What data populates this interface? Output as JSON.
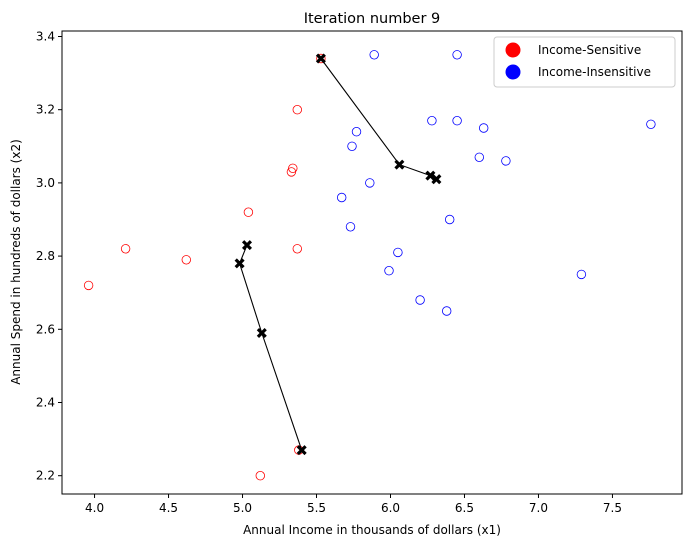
{
  "chart_data": {
    "type": "scatter",
    "title": "Iteration number 9",
    "xlabel": "Annual Income in thousands of dollars (x1)",
    "ylabel": "Annual Spend in hundreds of dollars (x2)",
    "xlim": [
      3.78,
      7.97
    ],
    "ylim": [
      2.15,
      3.415
    ],
    "xticks": [
      "4.0",
      "4.5",
      "5.0",
      "5.5",
      "6.0",
      "6.5",
      "7.0",
      "7.5"
    ],
    "yticks": [
      "2.2",
      "2.4",
      "2.6",
      "2.8",
      "3.0",
      "3.2",
      "3.4"
    ],
    "grid": false,
    "legend": {
      "position": "top-right",
      "entries": [
        {
          "label": "Income-Sensitive",
          "color": "#ff0000"
        },
        {
          "label": "Income-Insensitive",
          "color": "#0000ff"
        }
      ]
    },
    "series": [
      {
        "name": "Income-Sensitive",
        "color": "#ff0000",
        "marker": "hollow-circle",
        "points": [
          {
            "x": 3.96,
            "y": 2.72
          },
          {
            "x": 4.21,
            "y": 2.82
          },
          {
            "x": 4.62,
            "y": 2.79
          },
          {
            "x": 5.04,
            "y": 2.92
          },
          {
            "x": 5.12,
            "y": 2.2
          },
          {
            "x": 5.33,
            "y": 3.03
          },
          {
            "x": 5.34,
            "y": 3.04
          },
          {
            "x": 5.37,
            "y": 3.2
          },
          {
            "x": 5.37,
            "y": 2.82
          },
          {
            "x": 5.38,
            "y": 2.27
          },
          {
            "x": 5.53,
            "y": 3.34
          }
        ]
      },
      {
        "name": "Income-Insensitive",
        "color": "#0000ff",
        "marker": "hollow-circle",
        "points": [
          {
            "x": 5.67,
            "y": 2.96
          },
          {
            "x": 5.73,
            "y": 2.88
          },
          {
            "x": 5.74,
            "y": 3.1
          },
          {
            "x": 5.77,
            "y": 3.14
          },
          {
            "x": 5.86,
            "y": 3.0
          },
          {
            "x": 5.89,
            "y": 3.35
          },
          {
            "x": 5.99,
            "y": 2.76
          },
          {
            "x": 6.05,
            "y": 2.81
          },
          {
            "x": 6.2,
            "y": 2.68
          },
          {
            "x": 6.28,
            "y": 3.17
          },
          {
            "x": 6.38,
            "y": 2.65
          },
          {
            "x": 6.4,
            "y": 2.9
          },
          {
            "x": 6.45,
            "y": 3.35
          },
          {
            "x": 6.45,
            "y": 3.17
          },
          {
            "x": 6.6,
            "y": 3.07
          },
          {
            "x": 6.63,
            "y": 3.15
          },
          {
            "x": 6.78,
            "y": 3.06
          },
          {
            "x": 7.29,
            "y": 2.75
          },
          {
            "x": 7.76,
            "y": 3.16
          }
        ]
      }
    ],
    "centroid_paths": [
      {
        "color": "#000000",
        "marker": "x-filled",
        "points": [
          {
            "x": 5.4,
            "y": 2.27
          },
          {
            "x": 5.13,
            "y": 2.59
          },
          {
            "x": 4.98,
            "y": 2.78
          },
          {
            "x": 5.03,
            "y": 2.83
          }
        ]
      },
      {
        "color": "#000000",
        "marker": "x-filled",
        "points": [
          {
            "x": 5.53,
            "y": 3.34
          },
          {
            "x": 6.06,
            "y": 3.05
          },
          {
            "x": 6.27,
            "y": 3.02
          },
          {
            "x": 6.31,
            "y": 3.01
          }
        ]
      }
    ]
  }
}
